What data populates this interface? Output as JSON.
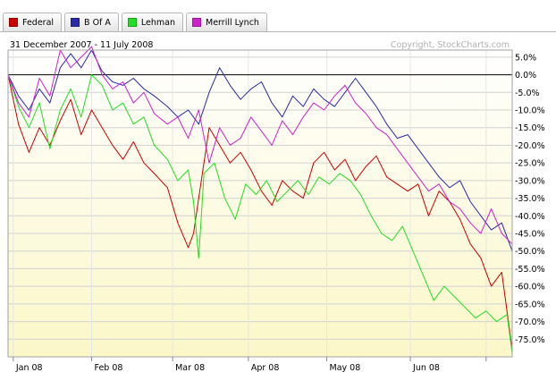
{
  "legend": [
    {
      "label": "Federal",
      "color": "#cc0000"
    },
    {
      "label": "B Of A",
      "color": "#2a2aa8"
    },
    {
      "label": "Lehman",
      "color": "#22dd22"
    },
    {
      "label": "Merrill Lynch",
      "color": "#cc22cc"
    }
  ],
  "date_range": "31 December 2007 - 11 July 2008",
  "copyright": "Copyright, StockCharts.com",
  "chart_data": {
    "type": "line",
    "x_ticks": [
      "Jan 08",
      "Feb 08",
      "Mar 08",
      "Apr 08",
      "May 08",
      "Jun 08"
    ],
    "y_ticks": [
      "5.0%",
      "0.0%",
      "-5.0%",
      "-10.0%",
      "-15.0%",
      "-20.0%",
      "-25.0%",
      "-30.0%",
      "-35.0%",
      "-40.0%",
      "-45.0%",
      "-50.0%",
      "-55.0%",
      "-60.0%",
      "-65.0%",
      "-70.0%",
      "-75.0%"
    ],
    "ylim": [
      -80,
      7
    ],
    "xlim": [
      "2007-12-31",
      "2008-07-11"
    ],
    "grid": true,
    "legend_position": "top",
    "series": [
      {
        "name": "Federal",
        "color": "#cc0000",
        "points": [
          [
            "2007-12-31",
            0
          ],
          [
            "2008-01-04",
            -14
          ],
          [
            "2008-01-08",
            -22
          ],
          [
            "2008-01-12",
            -15
          ],
          [
            "2008-01-16",
            -20
          ],
          [
            "2008-01-20",
            -13
          ],
          [
            "2008-01-24",
            -7
          ],
          [
            "2008-01-28",
            -17
          ],
          [
            "2008-02-01",
            -10
          ],
          [
            "2008-02-05",
            -15
          ],
          [
            "2008-02-09",
            -20
          ],
          [
            "2008-02-13",
            -24
          ],
          [
            "2008-02-17",
            -19
          ],
          [
            "2008-02-21",
            -25
          ],
          [
            "2008-02-25",
            -28
          ],
          [
            "2008-03-01",
            -32
          ],
          [
            "2008-03-05",
            -42
          ],
          [
            "2008-03-09",
            -49
          ],
          [
            "2008-03-11",
            -45
          ],
          [
            "2008-03-13",
            -35
          ],
          [
            "2008-03-17",
            -15
          ],
          [
            "2008-03-21",
            -20
          ],
          [
            "2008-03-25",
            -25
          ],
          [
            "2008-03-29",
            -22
          ],
          [
            "2008-04-02",
            -27
          ],
          [
            "2008-04-06",
            -33
          ],
          [
            "2008-04-10",
            -37
          ],
          [
            "2008-04-14",
            -30
          ],
          [
            "2008-04-18",
            -33
          ],
          [
            "2008-04-22",
            -35
          ],
          [
            "2008-04-26",
            -25
          ],
          [
            "2008-04-30",
            -22
          ],
          [
            "2008-05-04",
            -27
          ],
          [
            "2008-05-08",
            -24
          ],
          [
            "2008-05-12",
            -30
          ],
          [
            "2008-05-16",
            -26
          ],
          [
            "2008-05-20",
            -23
          ],
          [
            "2008-05-24",
            -29
          ],
          [
            "2008-05-28",
            -31
          ],
          [
            "2008-06-01",
            -33
          ],
          [
            "2008-06-05",
            -31
          ],
          [
            "2008-06-09",
            -40
          ],
          [
            "2008-06-13",
            -33
          ],
          [
            "2008-06-17",
            -36
          ],
          [
            "2008-06-21",
            -41
          ],
          [
            "2008-06-25",
            -48
          ],
          [
            "2008-06-29",
            -52
          ],
          [
            "2008-07-03",
            -60
          ],
          [
            "2008-07-07",
            -56
          ],
          [
            "2008-07-11",
            -78
          ]
        ]
      },
      {
        "name": "B Of A",
        "color": "#2a2aa8",
        "points": [
          [
            "2007-12-31",
            0
          ],
          [
            "2008-01-04",
            -6
          ],
          [
            "2008-01-08",
            -10
          ],
          [
            "2008-01-12",
            -4
          ],
          [
            "2008-01-16",
            -8
          ],
          [
            "2008-01-20",
            2
          ],
          [
            "2008-01-24",
            6
          ],
          [
            "2008-01-28",
            2
          ],
          [
            "2008-02-01",
            7
          ],
          [
            "2008-02-05",
            1
          ],
          [
            "2008-02-09",
            -2
          ],
          [
            "2008-02-13",
            -3
          ],
          [
            "2008-02-17",
            -1
          ],
          [
            "2008-02-21",
            -4
          ],
          [
            "2008-02-25",
            -6
          ],
          [
            "2008-03-01",
            -9
          ],
          [
            "2008-03-05",
            -12
          ],
          [
            "2008-03-09",
            -10
          ],
          [
            "2008-03-13",
            -14
          ],
          [
            "2008-03-17",
            -5
          ],
          [
            "2008-03-21",
            2
          ],
          [
            "2008-03-25",
            -3
          ],
          [
            "2008-03-29",
            -7
          ],
          [
            "2008-04-02",
            -4
          ],
          [
            "2008-04-06",
            -2
          ],
          [
            "2008-04-10",
            -8
          ],
          [
            "2008-04-14",
            -12
          ],
          [
            "2008-04-18",
            -6
          ],
          [
            "2008-04-22",
            -9
          ],
          [
            "2008-04-26",
            -4
          ],
          [
            "2008-04-30",
            -7
          ],
          [
            "2008-05-04",
            -9
          ],
          [
            "2008-05-08",
            -5
          ],
          [
            "2008-05-12",
            -1
          ],
          [
            "2008-05-16",
            -5
          ],
          [
            "2008-05-20",
            -9
          ],
          [
            "2008-05-24",
            -14
          ],
          [
            "2008-05-28",
            -18
          ],
          [
            "2008-06-01",
            -17
          ],
          [
            "2008-06-05",
            -21
          ],
          [
            "2008-06-09",
            -25
          ],
          [
            "2008-06-13",
            -29
          ],
          [
            "2008-06-17",
            -32
          ],
          [
            "2008-06-21",
            -30
          ],
          [
            "2008-06-25",
            -36
          ],
          [
            "2008-06-29",
            -40
          ],
          [
            "2008-07-03",
            -44
          ],
          [
            "2008-07-07",
            -42
          ],
          [
            "2008-07-11",
            -50
          ]
        ]
      },
      {
        "name": "Lehman",
        "color": "#22dd22",
        "points": [
          [
            "2007-12-31",
            0
          ],
          [
            "2008-01-04",
            -9
          ],
          [
            "2008-01-08",
            -15
          ],
          [
            "2008-01-12",
            -8
          ],
          [
            "2008-01-16",
            -21
          ],
          [
            "2008-01-20",
            -10
          ],
          [
            "2008-01-24",
            -4
          ],
          [
            "2008-01-28",
            -12
          ],
          [
            "2008-02-01",
            0
          ],
          [
            "2008-02-05",
            -3
          ],
          [
            "2008-02-09",
            -10
          ],
          [
            "2008-02-13",
            -8
          ],
          [
            "2008-02-17",
            -14
          ],
          [
            "2008-02-21",
            -12
          ],
          [
            "2008-02-25",
            -20
          ],
          [
            "2008-03-01",
            -24
          ],
          [
            "2008-03-05",
            -30
          ],
          [
            "2008-03-09",
            -27
          ],
          [
            "2008-03-11",
            -36
          ],
          [
            "2008-03-13",
            -52
          ],
          [
            "2008-03-15",
            -28
          ],
          [
            "2008-03-19",
            -25
          ],
          [
            "2008-03-23",
            -35
          ],
          [
            "2008-03-27",
            -41
          ],
          [
            "2008-03-31",
            -31
          ],
          [
            "2008-04-04",
            -34
          ],
          [
            "2008-04-08",
            -30
          ],
          [
            "2008-04-12",
            -36
          ],
          [
            "2008-04-16",
            -33
          ],
          [
            "2008-04-20",
            -30
          ],
          [
            "2008-04-24",
            -34
          ],
          [
            "2008-04-28",
            -29
          ],
          [
            "2008-05-02",
            -31
          ],
          [
            "2008-05-06",
            -28
          ],
          [
            "2008-05-10",
            -30
          ],
          [
            "2008-05-14",
            -34
          ],
          [
            "2008-05-18",
            -40
          ],
          [
            "2008-05-22",
            -45
          ],
          [
            "2008-05-26",
            -47
          ],
          [
            "2008-05-30",
            -43
          ],
          [
            "2008-06-03",
            -50
          ],
          [
            "2008-06-07",
            -57
          ],
          [
            "2008-06-11",
            -64
          ],
          [
            "2008-06-15",
            -60
          ],
          [
            "2008-06-19",
            -63
          ],
          [
            "2008-06-23",
            -66
          ],
          [
            "2008-06-27",
            -69
          ],
          [
            "2008-07-01",
            -67
          ],
          [
            "2008-07-05",
            -70
          ],
          [
            "2008-07-09",
            -68
          ],
          [
            "2008-07-11",
            -79
          ]
        ]
      },
      {
        "name": "Merrill Lynch",
        "color": "#cc22cc",
        "points": [
          [
            "2007-12-31",
            0
          ],
          [
            "2008-01-04",
            -8
          ],
          [
            "2008-01-08",
            -12
          ],
          [
            "2008-01-12",
            -1
          ],
          [
            "2008-01-16",
            -6
          ],
          [
            "2008-01-20",
            7
          ],
          [
            "2008-01-24",
            2
          ],
          [
            "2008-01-28",
            5
          ],
          [
            "2008-02-01",
            8
          ],
          [
            "2008-02-05",
            0
          ],
          [
            "2008-02-09",
            -4
          ],
          [
            "2008-02-13",
            -2
          ],
          [
            "2008-02-17",
            -8
          ],
          [
            "2008-02-21",
            -5
          ],
          [
            "2008-02-25",
            -11
          ],
          [
            "2008-03-01",
            -14
          ],
          [
            "2008-03-05",
            -12
          ],
          [
            "2008-03-09",
            -18
          ],
          [
            "2008-03-13",
            -10
          ],
          [
            "2008-03-17",
            -25
          ],
          [
            "2008-03-21",
            -15
          ],
          [
            "2008-03-25",
            -20
          ],
          [
            "2008-03-29",
            -18
          ],
          [
            "2008-04-02",
            -12
          ],
          [
            "2008-04-06",
            -16
          ],
          [
            "2008-04-10",
            -20
          ],
          [
            "2008-04-14",
            -13
          ],
          [
            "2008-04-18",
            -17
          ],
          [
            "2008-04-22",
            -12
          ],
          [
            "2008-04-26",
            -8
          ],
          [
            "2008-04-30",
            -10
          ],
          [
            "2008-05-04",
            -6
          ],
          [
            "2008-05-08",
            -3
          ],
          [
            "2008-05-12",
            -8
          ],
          [
            "2008-05-16",
            -11
          ],
          [
            "2008-05-20",
            -15
          ],
          [
            "2008-05-24",
            -17
          ],
          [
            "2008-05-28",
            -21
          ],
          [
            "2008-06-01",
            -25
          ],
          [
            "2008-06-05",
            -29
          ],
          [
            "2008-06-09",
            -33
          ],
          [
            "2008-06-13",
            -31
          ],
          [
            "2008-06-17",
            -36
          ],
          [
            "2008-06-21",
            -38
          ],
          [
            "2008-06-25",
            -42
          ],
          [
            "2008-06-29",
            -45
          ],
          [
            "2008-07-03",
            -38
          ],
          [
            "2008-07-07",
            -45
          ],
          [
            "2008-07-11",
            -48
          ]
        ]
      }
    ]
  }
}
